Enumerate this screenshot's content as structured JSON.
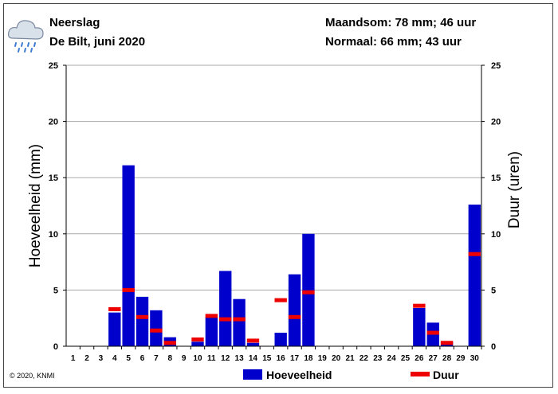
{
  "header": {
    "title": "Neerslag",
    "subtitle": "De Bilt, juni 2020",
    "month_total": "Maandsom: 78 mm; 46 uur",
    "normal": "Normaal: 66 mm; 43 uur"
  },
  "icon": "rain-cloud-icon",
  "copyright": "© 2020, KNMI",
  "colors": {
    "amount": "#0000cc",
    "duration": "#ee0000",
    "grid": "#aaaaaa"
  },
  "chart_data": {
    "type": "bar",
    "categories": [
      "1",
      "2",
      "3",
      "4",
      "5",
      "6",
      "7",
      "8",
      "9",
      "10",
      "11",
      "12",
      "13",
      "14",
      "15",
      "16",
      "17",
      "18",
      "19",
      "20",
      "21",
      "22",
      "23",
      "24",
      "25",
      "26",
      "27",
      "28",
      "29",
      "30"
    ],
    "series": [
      {
        "name": "Hoeveelheid",
        "mark": "bar",
        "axis": "left",
        "values": [
          0,
          0,
          0,
          3.0,
          16.1,
          4.4,
          3.2,
          0.8,
          0,
          0.4,
          2.6,
          6.7,
          4.2,
          0.3,
          0,
          1.2,
          6.4,
          10.0,
          0,
          0,
          0,
          0,
          0,
          0,
          0,
          3.4,
          2.1,
          0.4,
          0,
          12.6
        ]
      },
      {
        "name": "Duur",
        "mark": "dash",
        "axis": "right",
        "values": [
          null,
          null,
          null,
          3.3,
          5.0,
          2.6,
          1.4,
          0.3,
          null,
          0.6,
          2.7,
          2.4,
          2.4,
          0.5,
          null,
          4.1,
          2.6,
          4.8,
          null,
          null,
          null,
          null,
          null,
          null,
          null,
          3.6,
          1.2,
          0.3,
          null,
          8.2
        ]
      }
    ],
    "ylabel": "Hoeveelheid (mm)",
    "y2label": "Duur (uren)",
    "ylim": [
      0,
      25
    ],
    "y2lim": [
      0,
      25
    ],
    "yticks": [
      0,
      5,
      10,
      15,
      20,
      25
    ],
    "grid": true,
    "legend_position": "bottom"
  }
}
